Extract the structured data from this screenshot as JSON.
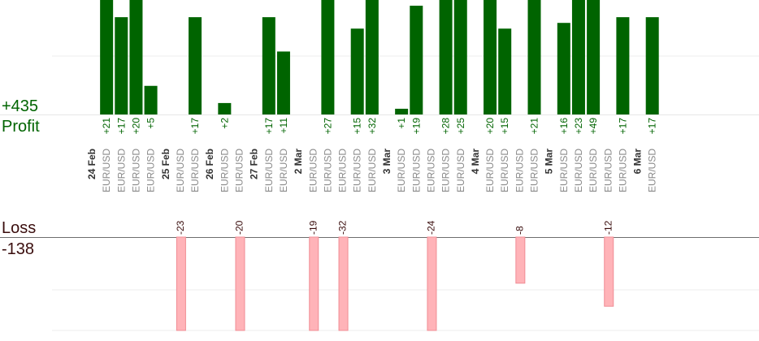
{
  "summary": {
    "profit_total": "+435",
    "profit_label": "Profit",
    "loss_label": "Loss",
    "loss_total": "-138"
  },
  "colors": {
    "profit_bar": "#006400",
    "profit_text": "#006400",
    "loss_bar": "#ffb3b8",
    "loss_bar_edge": "#f08c94",
    "loss_text": "#3a0d0d",
    "date_text": "#333333",
    "pair_text": "#8a8a8a"
  },
  "chart_data": {
    "type": "bar",
    "days": [
      {
        "date": "24 Feb",
        "trades": [
          {
            "pair": "EUR/USD",
            "value": 21,
            "label": "+21"
          },
          {
            "pair": "EUR/USD",
            "value": 17,
            "label": "+17"
          },
          {
            "pair": "EUR/USD",
            "value": 20,
            "label": "+20"
          },
          {
            "pair": "EUR/USD",
            "value": 5,
            "label": "+5"
          }
        ]
      },
      {
        "date": "25 Feb",
        "trades": [
          {
            "pair": "EUR/USD",
            "value": -23,
            "label": "-23"
          },
          {
            "pair": "EUR/USD",
            "value": 17,
            "label": "+17"
          }
        ]
      },
      {
        "date": "26 Feb",
        "trades": [
          {
            "pair": "EUR/USD",
            "value": 2,
            "label": "+2"
          },
          {
            "pair": "EUR/USD",
            "value": -20,
            "label": "-20"
          }
        ]
      },
      {
        "date": "27 Feb",
        "trades": [
          {
            "pair": "EUR/USD",
            "value": 17,
            "label": "+17"
          },
          {
            "pair": "EUR/USD",
            "value": 11,
            "label": "+11"
          }
        ]
      },
      {
        "date": "2 Mar",
        "trades": [
          {
            "pair": "EUR/USD",
            "value": -19,
            "label": "-19"
          },
          {
            "pair": "EUR/USD",
            "value": 27,
            "label": "+27"
          },
          {
            "pair": "EUR/USD",
            "value": -32,
            "label": "-32"
          },
          {
            "pair": "EUR/USD",
            "value": 15,
            "label": "+15"
          },
          {
            "pair": "EUR/USD",
            "value": 32,
            "label": "+32"
          }
        ]
      },
      {
        "date": "3 Mar",
        "trades": [
          {
            "pair": "EUR/USD",
            "value": 1,
            "label": "+1"
          },
          {
            "pair": "EUR/USD",
            "value": 19,
            "label": "+19"
          },
          {
            "pair": "EUR/USD",
            "value": -24,
            "label": "-24"
          },
          {
            "pair": "EUR/USD",
            "value": 28,
            "label": "+28"
          },
          {
            "pair": "EUR/USD",
            "value": 25,
            "label": "+25"
          }
        ]
      },
      {
        "date": "4 Mar",
        "trades": [
          {
            "pair": "EUR/USD",
            "value": 20,
            "label": "+20"
          },
          {
            "pair": "EUR/USD",
            "value": 15,
            "label": "+15"
          },
          {
            "pair": "EUR/USD",
            "value": -8,
            "label": "-8"
          },
          {
            "pair": "EUR/USD",
            "value": 21,
            "label": "+21"
          }
        ]
      },
      {
        "date": "5 Mar",
        "trades": [
          {
            "pair": "EUR/USD",
            "value": 16,
            "label": "+16"
          },
          {
            "pair": "EUR/USD",
            "value": 23,
            "label": "+23"
          },
          {
            "pair": "EUR/USD",
            "value": 49,
            "label": "+49"
          },
          {
            "pair": "EUR/USD",
            "value": -12,
            "label": "-12"
          },
          {
            "pair": "EUR/USD",
            "value": 17,
            "label": "+17"
          }
        ]
      },
      {
        "date": "6 Mar",
        "trades": [
          {
            "pair": "EUR/USD",
            "value": 17,
            "label": "+17"
          }
        ]
      }
    ],
    "profit_axis_max": 20,
    "loss_axis_max": 16,
    "bars_clipped_at_axis_max": true,
    "grid": true,
    "title": "",
    "xlabel": "",
    "ylabel": ""
  }
}
